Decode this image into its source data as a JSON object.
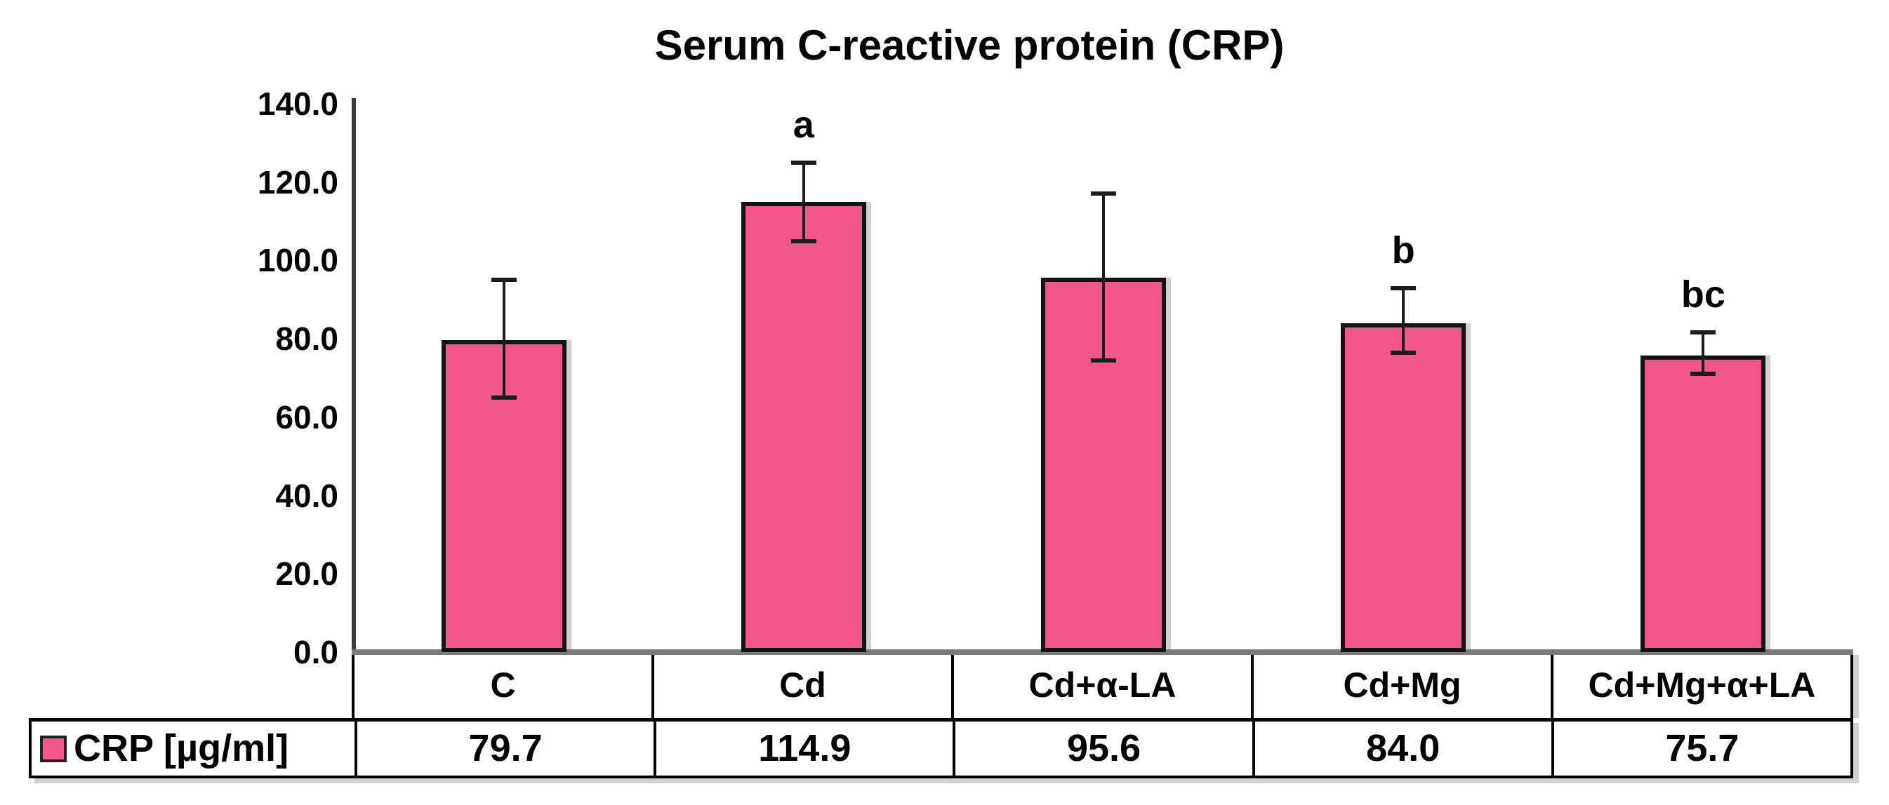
{
  "title": "Serum C-reactive protein (CRP)",
  "legend": {
    "label": "CRP [µg/ml]",
    "swatch_color": "#F4578D",
    "swatch_border": "#222222"
  },
  "chart_data": {
    "type": "bar",
    "title": "Serum C-reactive protein (CRP)",
    "categories": [
      "C",
      "Cd",
      "Cd+α-LA",
      "Cd+Mg",
      "Cd+Mg+α+LA"
    ],
    "series": [
      {
        "name": "CRP [µg/ml]",
        "values": [
          79.7,
          114.9,
          95.6,
          84.0,
          75.7
        ]
      }
    ],
    "value_labels": [
      "79.7",
      "114.9",
      "95.6",
      "84.0",
      "75.7"
    ],
    "error_bars": [
      {
        "upper": 95.0,
        "lower": 65.0
      },
      {
        "upper": 124.9,
        "lower": 104.9
      },
      {
        "upper": 117.0,
        "lower": 74.5
      },
      {
        "upper": 93.0,
        "lower": 76.5
      },
      {
        "upper": 81.7,
        "lower": 71.0
      }
    ],
    "significance_letters": [
      "",
      "a",
      "",
      "b",
      "bc"
    ],
    "xlabel": "",
    "ylabel": "",
    "ylim": [
      0,
      140
    ],
    "ytick_step": 20,
    "ytick_labels": [
      "0.0",
      "20.0",
      "40.0",
      "60.0",
      "80.0",
      "100.0",
      "120.0",
      "140.0"
    ],
    "grid": false,
    "legend_position": "bottom-table",
    "bar_color": "#F4578D",
    "bar_border_color": "#141414",
    "axis_color": "#3C3C3C",
    "baseline_color": "#7A7A7A"
  }
}
